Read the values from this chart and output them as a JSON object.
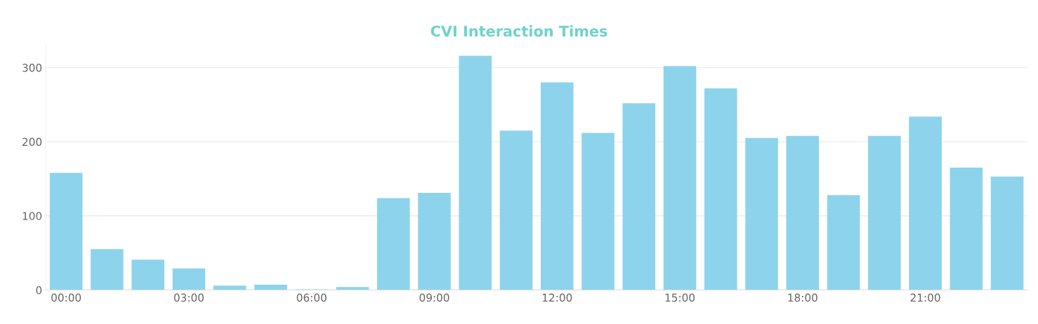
{
  "chart_data": {
    "type": "bar",
    "title": "CVI Interaction Times",
    "categories": [
      "00:00",
      null,
      null,
      "03:00",
      null,
      null,
      "06:00",
      null,
      null,
      "09:00",
      null,
      null,
      "12:00",
      null,
      null,
      "15:00",
      null,
      null,
      "18:00",
      null,
      null,
      "21:00",
      null,
      null
    ],
    "values": [
      158,
      55,
      41,
      29,
      6,
      7,
      1,
      4,
      124,
      131,
      316,
      215,
      280,
      212,
      252,
      302,
      272,
      205,
      208,
      128,
      208,
      234,
      165,
      153
    ],
    "color": "#8dd3eb",
    "ylim": [
      0,
      330
    ],
    "yticks": [
      0,
      100,
      200,
      300
    ],
    "grid": "y"
  }
}
